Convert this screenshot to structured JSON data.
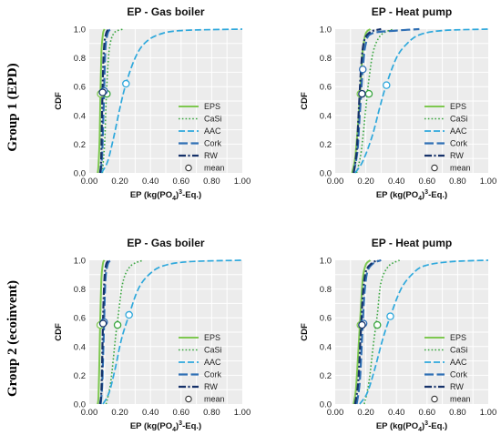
{
  "row_labels": [
    "Group 1 (EPD)",
    "Group 2 (ecoinvent)"
  ],
  "legend_labels": [
    "EPS",
    "CaSi",
    "AAC",
    "Cork",
    "RW",
    "mean"
  ],
  "x_tick_labels": [
    "0.00",
    "0.20",
    "0.40",
    "0.60",
    "0.80",
    "1.00"
  ],
  "y_tick_labels": [
    "0.0",
    "0.2",
    "0.4",
    "0.6",
    "0.8",
    "1.0"
  ],
  "colors": {
    "EPS": "#7ec850",
    "CaSi": "#3aa640",
    "AAC": "#2ea8dc",
    "Cork": "#2f6fb4",
    "RW": "#16326a",
    "plot_background": "#ececec"
  },
  "chart_data": [
    {
      "type": "line",
      "title": "EP - Gas boiler",
      "xlabel": "EP (kg(PO4)3-Eq.)",
      "ylabel": "CDF",
      "xlim": [
        0,
        1.0
      ],
      "ylim": [
        0,
        1.0
      ],
      "grid": true,
      "legend_position": "bottom-right",
      "series": [
        {
          "name": "EPS",
          "cdf_points": [
            [
              0.055,
              0
            ],
            [
              0.06,
              0.05
            ],
            [
              0.068,
              0.25
            ],
            [
              0.073,
              0.55
            ],
            [
              0.08,
              0.85
            ],
            [
              0.09,
              0.97
            ],
            [
              0.1,
              1.0
            ]
          ],
          "mean": [
            0.075,
            0.55
          ]
        },
        {
          "name": "CaSi",
          "cdf_points": [
            [
              0.085,
              0
            ],
            [
              0.1,
              0.2
            ],
            [
              0.112,
              0.55
            ],
            [
              0.13,
              0.85
            ],
            [
              0.16,
              0.97
            ],
            [
              0.22,
              1.0
            ]
          ],
          "mean": [
            0.115,
            0.55
          ]
        },
        {
          "name": "AAC",
          "cdf_points": [
            [
              0.08,
              0
            ],
            [
              0.12,
              0.08
            ],
            [
              0.16,
              0.25
            ],
            [
              0.2,
              0.45
            ],
            [
              0.24,
              0.62
            ],
            [
              0.3,
              0.8
            ],
            [
              0.36,
              0.9
            ],
            [
              0.45,
              0.96
            ],
            [
              0.6,
              0.99
            ],
            [
              1.0,
              1.0
            ]
          ],
          "mean": [
            0.24,
            0.62
          ]
        },
        {
          "name": "Cork",
          "cdf_points": [
            [
              0.075,
              0
            ],
            [
              0.085,
              0.15
            ],
            [
              0.095,
              0.5
            ],
            [
              0.105,
              0.85
            ],
            [
              0.12,
              0.97
            ],
            [
              0.14,
              1.0
            ]
          ],
          "mean": [
            0.097,
            0.57
          ]
        },
        {
          "name": "RW",
          "cdf_points": [
            [
              0.07,
              0
            ],
            [
              0.078,
              0.1
            ],
            [
              0.085,
              0.5
            ],
            [
              0.095,
              0.85
            ],
            [
              0.11,
              0.97
            ],
            [
              0.13,
              1.0
            ]
          ],
          "mean": [
            0.087,
            0.56
          ]
        }
      ]
    },
    {
      "type": "line",
      "title": "EP - Heat pump",
      "xlabel": "EP (kg(PO4)3-Eq.)",
      "ylabel": "CDF",
      "xlim": [
        0,
        1.0
      ],
      "ylim": [
        0,
        1.0
      ],
      "grid": true,
      "legend_position": "bottom-right",
      "series": [
        {
          "name": "EPS",
          "cdf_points": [
            [
              0.11,
              0
            ],
            [
              0.13,
              0.1
            ],
            [
              0.15,
              0.35
            ],
            [
              0.165,
              0.6
            ],
            [
              0.18,
              0.85
            ],
            [
              0.2,
              0.97
            ],
            [
              0.23,
              1.0
            ]
          ],
          "mean": [
            0.165,
            0.55
          ]
        },
        {
          "name": "CaSi",
          "cdf_points": [
            [
              0.14,
              0
            ],
            [
              0.17,
              0.15
            ],
            [
              0.2,
              0.45
            ],
            [
              0.22,
              0.65
            ],
            [
              0.25,
              0.85
            ],
            [
              0.3,
              0.96
            ],
            [
              0.38,
              1.0
            ]
          ],
          "mean": [
            0.22,
            0.55
          ]
        },
        {
          "name": "AAC",
          "cdf_points": [
            [
              0.13,
              0
            ],
            [
              0.18,
              0.08
            ],
            [
              0.24,
              0.25
            ],
            [
              0.29,
              0.45
            ],
            [
              0.33,
              0.6
            ],
            [
              0.4,
              0.8
            ],
            [
              0.47,
              0.9
            ],
            [
              0.55,
              0.96
            ],
            [
              0.7,
              0.99
            ],
            [
              1.0,
              1.0
            ]
          ],
          "mean": [
            0.335,
            0.61
          ]
        },
        {
          "name": "Cork",
          "cdf_points": [
            [
              0.12,
              0
            ],
            [
              0.145,
              0.15
            ],
            [
              0.16,
              0.4
            ],
            [
              0.18,
              0.72
            ],
            [
              0.2,
              0.9
            ],
            [
              0.24,
              0.97
            ],
            [
              0.4,
              0.99
            ],
            [
              0.55,
              1.0
            ]
          ],
          "mean": [
            0.18,
            0.72
          ]
        },
        {
          "name": "RW",
          "cdf_points": [
            [
              0.12,
              0
            ],
            [
              0.14,
              0.15
            ],
            [
              0.155,
              0.45
            ],
            [
              0.17,
              0.75
            ],
            [
              0.19,
              0.92
            ],
            [
              0.23,
              0.98
            ],
            [
              0.3,
              1.0
            ]
          ],
          "mean": [
            0.175,
            0.55
          ]
        }
      ]
    },
    {
      "type": "line",
      "title": "EP - Gas boiler",
      "xlabel": "EP (kg(PO4)3-Eq.)",
      "ylabel": "CDF",
      "xlim": [
        0,
        1.0
      ],
      "ylim": [
        0,
        1.0
      ],
      "grid": true,
      "legend_position": "bottom-right",
      "series": [
        {
          "name": "EPS",
          "cdf_points": [
            [
              0.055,
              0
            ],
            [
              0.06,
              0.05
            ],
            [
              0.066,
              0.3
            ],
            [
              0.072,
              0.6
            ],
            [
              0.08,
              0.88
            ],
            [
              0.09,
              0.98
            ],
            [
              0.1,
              1.0
            ]
          ],
          "mean": [
            0.072,
            0.55
          ]
        },
        {
          "name": "CaSi",
          "cdf_points": [
            [
              0.11,
              0
            ],
            [
              0.14,
              0.15
            ],
            [
              0.17,
              0.45
            ],
            [
              0.19,
              0.62
            ],
            [
              0.22,
              0.85
            ],
            [
              0.27,
              0.96
            ],
            [
              0.35,
              1.0
            ]
          ],
          "mean": [
            0.185,
            0.55
          ]
        },
        {
          "name": "AAC",
          "cdf_points": [
            [
              0.09,
              0
            ],
            [
              0.13,
              0.08
            ],
            [
              0.17,
              0.25
            ],
            [
              0.21,
              0.45
            ],
            [
              0.26,
              0.62
            ],
            [
              0.32,
              0.8
            ],
            [
              0.39,
              0.9
            ],
            [
              0.48,
              0.96
            ],
            [
              0.65,
              0.99
            ],
            [
              1.0,
              1.0
            ]
          ],
          "mean": [
            0.26,
            0.62
          ]
        },
        {
          "name": "Cork",
          "cdf_points": [
            [
              0.075,
              0
            ],
            [
              0.085,
              0.15
            ],
            [
              0.095,
              0.5
            ],
            [
              0.105,
              0.85
            ],
            [
              0.12,
              0.97
            ],
            [
              0.14,
              1.0
            ]
          ],
          "mean": [
            0.097,
            0.57
          ]
        },
        {
          "name": "RW",
          "cdf_points": [
            [
              0.07,
              0
            ],
            [
              0.08,
              0.1
            ],
            [
              0.088,
              0.5
            ],
            [
              0.098,
              0.85
            ],
            [
              0.11,
              0.97
            ],
            [
              0.13,
              1.0
            ]
          ],
          "mean": [
            0.09,
            0.56
          ]
        }
      ]
    },
    {
      "type": "line",
      "title": "EP - Heat pump",
      "xlabel": "EP (kg(PO4)3-Eq.)",
      "ylabel": "CDF",
      "xlim": [
        0,
        1.0
      ],
      "ylim": [
        0,
        1.0
      ],
      "grid": true,
      "legend_position": "bottom-right",
      "series": [
        {
          "name": "EPS",
          "cdf_points": [
            [
              0.12,
              0
            ],
            [
              0.135,
              0.1
            ],
            [
              0.15,
              0.35
            ],
            [
              0.165,
              0.62
            ],
            [
              0.18,
              0.87
            ],
            [
              0.2,
              0.97
            ],
            [
              0.23,
              1.0
            ]
          ],
          "mean": [
            0.165,
            0.55
          ]
        },
        {
          "name": "CaSi",
          "cdf_points": [
            [
              0.19,
              0
            ],
            [
              0.22,
              0.15
            ],
            [
              0.25,
              0.42
            ],
            [
              0.275,
              0.62
            ],
            [
              0.3,
              0.85
            ],
            [
              0.35,
              0.96
            ],
            [
              0.42,
              1.0
            ]
          ],
          "mean": [
            0.275,
            0.55
          ]
        },
        {
          "name": "AAC",
          "cdf_points": [
            [
              0.16,
              0
            ],
            [
              0.21,
              0.08
            ],
            [
              0.26,
              0.25
            ],
            [
              0.31,
              0.45
            ],
            [
              0.36,
              0.61
            ],
            [
              0.43,
              0.8
            ],
            [
              0.5,
              0.9
            ],
            [
              0.58,
              0.96
            ],
            [
              0.75,
              0.99
            ],
            [
              1.0,
              1.0
            ]
          ],
          "mean": [
            0.36,
            0.61
          ]
        },
        {
          "name": "Cork",
          "cdf_points": [
            [
              0.14,
              0
            ],
            [
              0.16,
              0.15
            ],
            [
              0.175,
              0.45
            ],
            [
              0.19,
              0.75
            ],
            [
              0.21,
              0.92
            ],
            [
              0.25,
              0.98
            ],
            [
              0.3,
              1.0
            ]
          ],
          "mean": [
            0.185,
            0.56
          ]
        },
        {
          "name": "RW",
          "cdf_points": [
            [
              0.13,
              0
            ],
            [
              0.15,
              0.15
            ],
            [
              0.165,
              0.45
            ],
            [
              0.18,
              0.75
            ],
            [
              0.2,
              0.92
            ],
            [
              0.24,
              0.98
            ],
            [
              0.28,
              1.0
            ]
          ],
          "mean": [
            0.175,
            0.55
          ]
        }
      ]
    }
  ]
}
